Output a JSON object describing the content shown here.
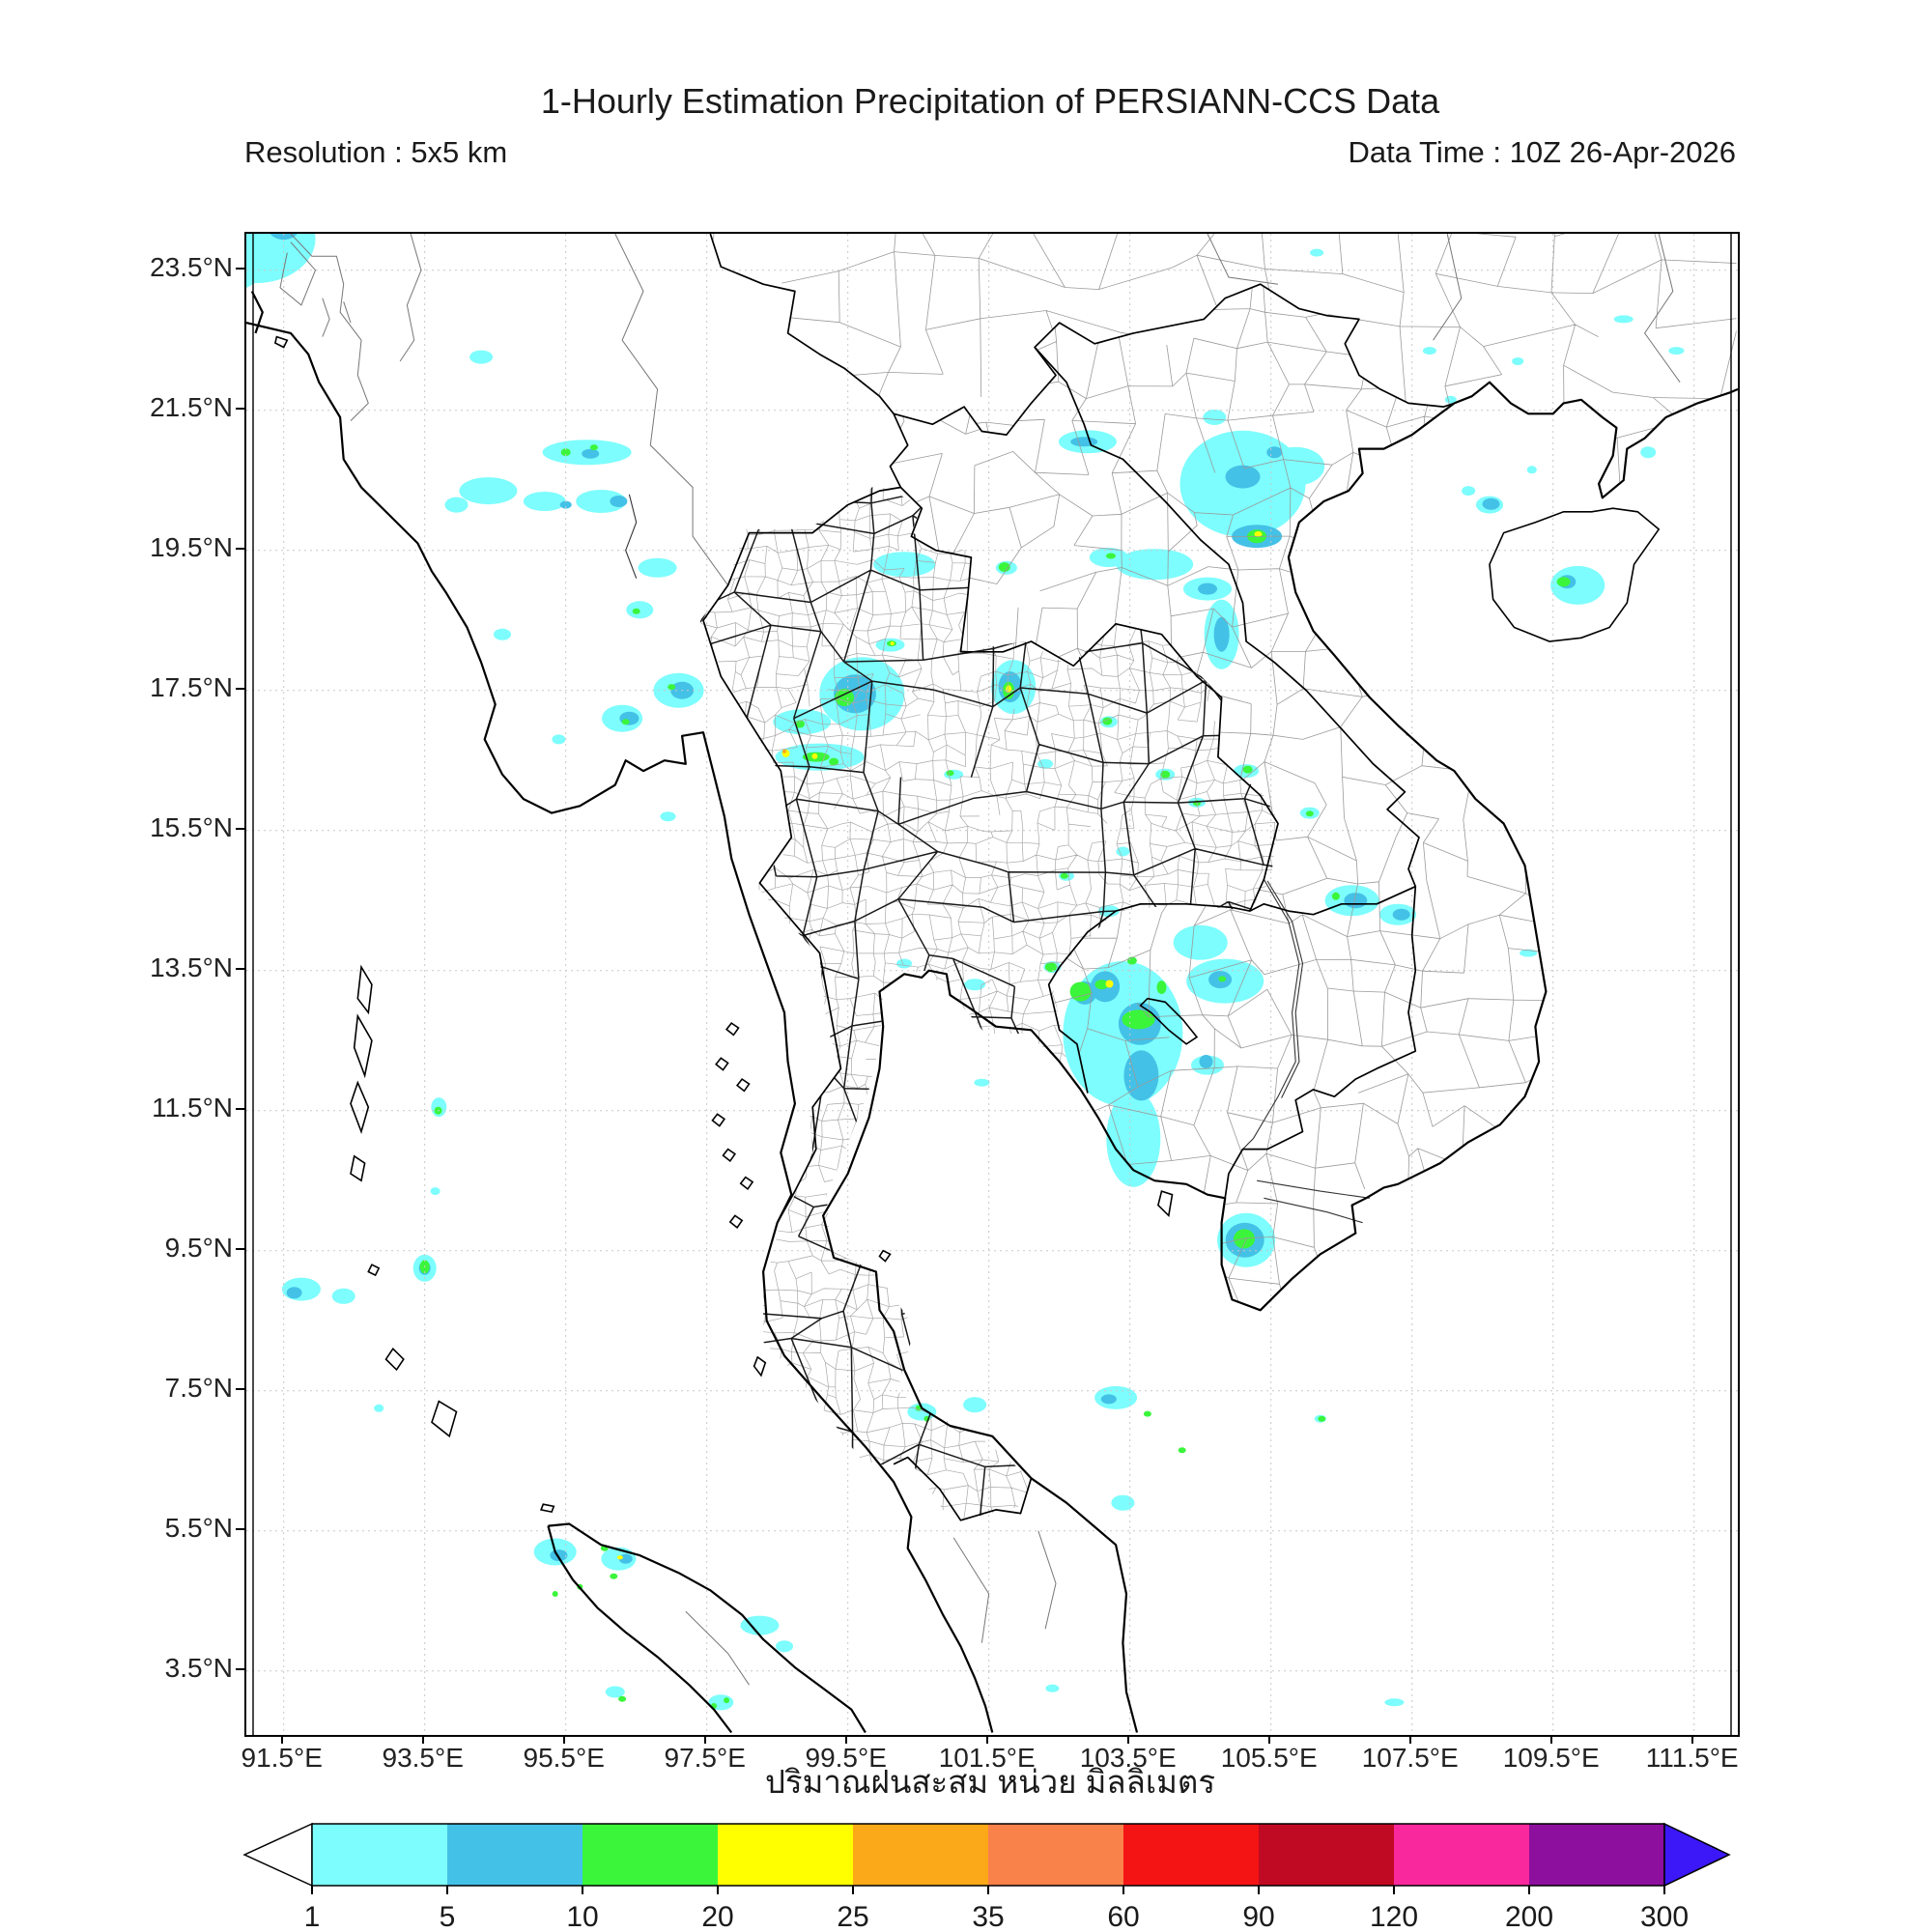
{
  "header": {
    "title": "1-Hourly Estimation Precipitation of PERSIANN-CCS Data",
    "resolution": "Resolution : 5x5 km",
    "data_time": "Data Time : 10Z 26-Apr-2026"
  },
  "caption": "ปริมาณฝนสะสม หน่วย มิลลิเมตร",
  "map": {
    "extent": {
      "lon_min": 90.97,
      "lon_max": 112.12,
      "lat_min": 2.6,
      "lat_max": 24.02
    },
    "lon_ticks": [
      {
        "label": "91.5°E",
        "lon": 91.5
      },
      {
        "label": "93.5°E",
        "lon": 93.5
      },
      {
        "label": "95.5°E",
        "lon": 95.5
      },
      {
        "label": "97.5°E",
        "lon": 97.5
      },
      {
        "label": "99.5°E",
        "lon": 99.5
      },
      {
        "label": "101.5°E",
        "lon": 101.5
      },
      {
        "label": "103.5°E",
        "lon": 103.5
      },
      {
        "label": "105.5°E",
        "lon": 105.5
      },
      {
        "label": "107.5°E",
        "lon": 107.5
      },
      {
        "label": "109.5°E",
        "lon": 109.5
      },
      {
        "label": "111.5°E",
        "lon": 111.5
      }
    ],
    "lat_ticks": [
      {
        "label": "23.5°N",
        "lat": 23.5
      },
      {
        "label": "21.5°N",
        "lat": 21.5
      },
      {
        "label": "19.5°N",
        "lat": 19.5
      },
      {
        "label": "17.5°N",
        "lat": 17.5
      },
      {
        "label": "15.5°N",
        "lat": 15.5
      },
      {
        "label": "13.5°N",
        "lat": 13.5
      },
      {
        "label": "11.5°N",
        "lat": 11.5
      },
      {
        "label": "9.5°N",
        "lat": 9.5
      },
      {
        "label": "7.5°N",
        "lat": 7.5
      },
      {
        "label": "5.5°N",
        "lat": 5.5
      },
      {
        "label": "3.5°N",
        "lat": 3.5
      }
    ],
    "grid_color": "#c8c8c8"
  },
  "colorbar": {
    "tick_labels": [
      "1",
      "5",
      "10",
      "20",
      "25",
      "35",
      "60",
      "90",
      "120",
      "200",
      "300"
    ],
    "segments": [
      {
        "range": "1-5",
        "color": "#7dfdfd"
      },
      {
        "range": "5-10",
        "color": "#44c1e6"
      },
      {
        "range": "10-20",
        "color": "#3bf53b"
      },
      {
        "range": "20-25",
        "color": "#ffff00"
      },
      {
        "range": "25-35",
        "color": "#fba819"
      },
      {
        "range": "35-60",
        "color": "#f9814a"
      },
      {
        "range": "60-90",
        "color": "#f41414"
      },
      {
        "range": "90-120",
        "color": "#c00a23"
      },
      {
        "range": "120-200",
        "color": "#f9289d"
      },
      {
        "range": "200-300",
        "color": "#8d0f9d"
      }
    ],
    "underflow_color": "#ffffff",
    "overflow_color": "#3c17f8"
  },
  "chart_data": {
    "type": "precipitation-map",
    "units": "mm",
    "cell_format": "[lon, lat, rx_px, ry_px, level]",
    "levels": {
      "1": "#7dfdfd",
      "2": "#44c1e6",
      "3": "#3bf53b",
      "4": "#ffff00",
      "5": "#fba819"
    },
    "cells": [
      [
        91.1,
        23.95,
        62,
        46,
        1
      ],
      [
        90.8,
        23.6,
        30,
        28,
        1
      ],
      [
        94.3,
        22.26,
        12,
        7,
        1
      ],
      [
        95.8,
        20.9,
        46,
        13,
        1
      ],
      [
        94.4,
        20.35,
        30,
        14,
        1
      ],
      [
        95.2,
        20.2,
        22,
        10,
        1
      ],
      [
        96.0,
        20.2,
        26,
        12,
        1
      ],
      [
        93.95,
        20.15,
        12,
        8,
        1
      ],
      [
        96.8,
        19.25,
        20,
        10,
        1
      ],
      [
        96.55,
        18.65,
        14,
        9,
        1
      ],
      [
        94.6,
        18.3,
        9,
        6,
        1
      ],
      [
        100.3,
        19.3,
        32,
        13,
        1
      ],
      [
        101.75,
        19.25,
        11,
        7,
        1
      ],
      [
        102.9,
        21.05,
        30,
        12,
        1
      ],
      [
        103.2,
        19.4,
        20,
        10,
        1
      ],
      [
        103.85,
        19.3,
        40,
        16,
        1
      ],
      [
        105.1,
        20.45,
        65,
        55,
        1
      ],
      [
        105.85,
        20.7,
        30,
        20,
        1
      ],
      [
        104.7,
        21.4,
        12,
        8,
        1
      ],
      [
        104.6,
        18.95,
        25,
        12,
        1
      ],
      [
        104.8,
        18.3,
        18,
        36,
        1
      ],
      [
        99.7,
        17.45,
        44,
        38,
        1
      ],
      [
        98.85,
        17.05,
        30,
        13,
        1
      ],
      [
        97.1,
        17.5,
        26,
        18,
        1
      ],
      [
        96.3,
        17.1,
        21,
        14,
        1
      ],
      [
        95.4,
        16.8,
        7,
        5,
        1
      ],
      [
        96.95,
        15.7,
        8,
        5,
        1
      ],
      [
        99.1,
        16.55,
        46,
        14,
        1
      ],
      [
        100.1,
        18.15,
        15,
        7,
        1
      ],
      [
        101.85,
        17.55,
        23,
        28,
        1
      ],
      [
        103.2,
        17.05,
        9,
        6,
        1
      ],
      [
        102.3,
        16.45,
        8,
        5,
        1
      ],
      [
        101.0,
        16.3,
        10,
        5,
        1
      ],
      [
        104.0,
        16.3,
        10,
        6,
        1
      ],
      [
        104.45,
        15.9,
        9,
        5,
        1
      ],
      [
        103.4,
        15.2,
        7,
        5,
        1
      ],
      [
        102.6,
        14.85,
        8,
        5,
        1
      ],
      [
        103.2,
        14.35,
        11,
        6,
        1
      ],
      [
        105.15,
        16.35,
        13,
        7,
        1
      ],
      [
        106.05,
        15.75,
        10,
        6,
        1
      ],
      [
        106.65,
        14.5,
        28,
        16,
        1
      ],
      [
        107.3,
        14.3,
        19,
        11,
        1
      ],
      [
        109.15,
        13.75,
        9,
        4,
        1
      ],
      [
        103.4,
        12.6,
        62,
        75,
        1
      ],
      [
        104.5,
        13.9,
        28,
        18,
        1
      ],
      [
        104.85,
        13.35,
        40,
        23,
        1
      ],
      [
        104.6,
        12.15,
        17,
        10,
        1
      ],
      [
        103.55,
        11.1,
        28,
        50,
        1
      ],
      [
        102.4,
        13.55,
        9,
        6,
        1
      ],
      [
        101.3,
        13.3,
        11,
        6,
        1
      ],
      [
        100.3,
        13.6,
        8,
        5,
        1
      ],
      [
        101.4,
        11.9,
        8,
        4,
        1
      ],
      [
        93.7,
        11.55,
        8,
        10,
        1
      ],
      [
        93.65,
        10.35,
        5,
        4,
        1
      ],
      [
        93.5,
        9.25,
        12,
        14,
        1
      ],
      [
        91.75,
        8.95,
        20,
        12,
        1
      ],
      [
        92.35,
        8.85,
        12,
        8,
        1
      ],
      [
        92.85,
        7.25,
        5,
        4,
        1
      ],
      [
        105.15,
        9.65,
        30,
        28,
        1
      ],
      [
        100.55,
        7.2,
        15,
        9,
        1
      ],
      [
        101.3,
        7.3,
        12,
        8,
        1
      ],
      [
        103.3,
        7.4,
        22,
        12,
        1
      ],
      [
        103.4,
        5.9,
        12,
        8,
        1
      ],
      [
        106.2,
        7.1,
        6,
        4,
        1
      ],
      [
        95.35,
        5.2,
        22,
        14,
        1
      ],
      [
        96.25,
        5.1,
        18,
        12,
        1
      ],
      [
        98.25,
        4.15,
        20,
        10,
        1
      ],
      [
        98.6,
        3.85,
        9,
        6,
        1
      ],
      [
        97.7,
        3.05,
        13,
        8,
        1
      ],
      [
        96.2,
        3.2,
        10,
        6,
        1
      ],
      [
        102.4,
        3.25,
        7,
        4,
        1
      ],
      [
        107.25,
        3.05,
        10,
        4,
        1
      ],
      [
        109.85,
        19.0,
        28,
        20,
        1
      ],
      [
        110.85,
        20.9,
        8,
        6,
        1
      ],
      [
        108.6,
        20.15,
        14,
        9,
        1
      ],
      [
        108.3,
        20.35,
        7,
        5,
        1
      ],
      [
        109.2,
        20.65,
        5,
        4,
        1
      ],
      [
        107.75,
        22.35,
        7,
        4,
        1
      ],
      [
        109.0,
        22.2,
        6,
        4,
        1
      ],
      [
        108.05,
        21.65,
        6,
        4,
        1
      ],
      [
        110.5,
        22.8,
        10,
        4,
        1
      ],
      [
        111.25,
        22.35,
        8,
        4,
        1
      ],
      [
        106.15,
        23.75,
        7,
        4,
        1
      ],
      [
        91.5,
        24.1,
        16,
        12,
        2
      ],
      [
        90.75,
        23.7,
        12,
        10,
        2
      ],
      [
        95.85,
        20.88,
        9,
        5,
        2
      ],
      [
        96.25,
        20.2,
        9,
        6,
        2
      ],
      [
        95.5,
        20.15,
        6,
        4,
        2
      ],
      [
        102.85,
        21.05,
        14,
        5,
        2
      ],
      [
        105.1,
        20.55,
        18,
        12,
        2
      ],
      [
        105.3,
        19.7,
        26,
        12,
        2
      ],
      [
        105.55,
        20.9,
        8,
        6,
        2
      ],
      [
        104.6,
        18.95,
        10,
        6,
        2
      ],
      [
        104.8,
        18.3,
        8,
        18,
        2
      ],
      [
        99.6,
        17.45,
        22,
        20,
        2
      ],
      [
        97.15,
        17.5,
        12,
        9,
        2
      ],
      [
        96.4,
        17.1,
        10,
        7,
        2
      ],
      [
        101.8,
        17.55,
        12,
        16,
        2
      ],
      [
        106.7,
        14.5,
        12,
        8,
        2
      ],
      [
        107.35,
        14.3,
        9,
        6,
        2
      ],
      [
        102.86,
        13.18,
        12,
        12,
        2
      ],
      [
        103.15,
        13.27,
        15,
        16,
        2
      ],
      [
        103.64,
        12.74,
        22,
        22,
        2
      ],
      [
        103.66,
        12.0,
        18,
        26,
        2
      ],
      [
        104.78,
        13.37,
        12,
        9,
        2
      ],
      [
        104.58,
        12.2,
        7,
        7,
        2
      ],
      [
        105.13,
        9.65,
        20,
        18,
        2
      ],
      [
        91.65,
        8.9,
        8,
        6,
        2
      ],
      [
        93.5,
        9.25,
        6,
        7,
        2
      ],
      [
        95.4,
        5.15,
        9,
        6,
        2
      ],
      [
        96.35,
        5.1,
        7,
        5,
        2
      ],
      [
        109.7,
        19.05,
        9,
        7,
        2
      ],
      [
        108.62,
        20.16,
        9,
        6,
        2
      ],
      [
        103.2,
        7.38,
        8,
        5,
        2
      ],
      [
        95.5,
        20.9,
        5,
        4,
        3
      ],
      [
        95.9,
        20.97,
        4,
        3,
        3
      ],
      [
        96.5,
        18.63,
        4,
        3,
        3
      ],
      [
        101.72,
        19.26,
        6,
        5,
        3
      ],
      [
        103.23,
        19.42,
        5,
        3,
        3
      ],
      [
        105.3,
        19.7,
        10,
        7,
        3
      ],
      [
        99.45,
        17.4,
        10,
        9,
        3
      ],
      [
        98.82,
        17.02,
        5,
        4,
        3
      ],
      [
        96.35,
        17.05,
        4,
        3,
        3
      ],
      [
        97.0,
        17.55,
        4,
        3,
        3
      ],
      [
        99.05,
        16.55,
        14,
        5,
        3
      ],
      [
        99.3,
        16.48,
        5,
        4,
        3
      ],
      [
        100.12,
        18.17,
        5,
        3,
        3
      ],
      [
        101.78,
        17.5,
        6,
        9,
        3
      ],
      [
        103.18,
        17.06,
        5,
        4,
        3
      ],
      [
        104.0,
        16.3,
        5,
        4,
        3
      ],
      [
        104.45,
        15.89,
        4,
        3,
        3
      ],
      [
        102.57,
        14.85,
        4,
        3,
        3
      ],
      [
        105.17,
        16.37,
        5,
        4,
        3
      ],
      [
        106.05,
        15.74,
        4,
        3,
        3
      ],
      [
        106.42,
        14.56,
        4,
        4,
        3
      ],
      [
        102.38,
        13.55,
        6,
        5,
        3
      ],
      [
        102.8,
        13.2,
        11,
        10,
        3
      ],
      [
        103.1,
        13.3,
        7,
        5,
        3
      ],
      [
        103.62,
        12.8,
        17,
        10,
        3
      ],
      [
        103.95,
        13.26,
        5,
        7,
        3
      ],
      [
        103.53,
        13.64,
        5,
        4,
        3
      ],
      [
        104.81,
        13.38,
        4,
        3,
        3
      ],
      [
        105.12,
        9.67,
        11,
        10,
        3
      ],
      [
        93.69,
        11.5,
        4,
        4,
        3
      ],
      [
        93.5,
        9.27,
        5,
        7,
        3
      ],
      [
        100.5,
        7.25,
        3,
        3,
        3
      ],
      [
        100.62,
        7.1,
        3,
        3,
        3
      ],
      [
        103.75,
        7.17,
        4,
        3,
        3
      ],
      [
        104.24,
        6.65,
        4,
        3,
        3
      ],
      [
        106.22,
        7.1,
        4,
        3,
        3
      ],
      [
        95.7,
        4.7,
        3,
        3,
        3
      ],
      [
        95.35,
        4.6,
        3,
        3,
        3
      ],
      [
        96.05,
        5.25,
        4,
        3,
        3
      ],
      [
        96.18,
        4.85,
        4,
        3,
        3
      ],
      [
        97.6,
        3.0,
        3,
        3,
        3
      ],
      [
        97.78,
        3.08,
        3,
        3,
        3
      ],
      [
        109.65,
        19.05,
        7,
        5,
        3
      ],
      [
        100.95,
        16.32,
        4,
        3,
        3
      ],
      [
        96.3,
        3.1,
        4,
        3,
        3
      ],
      [
        103.21,
        13.31,
        4,
        4,
        4
      ],
      [
        105.32,
        19.73,
        4,
        3,
        4
      ],
      [
        99.03,
        16.56,
        3,
        3,
        4
      ],
      [
        101.78,
        17.52,
        3,
        4,
        4
      ],
      [
        100.13,
        18.17,
        2,
        2,
        4
      ],
      [
        96.27,
        5.12,
        3,
        2,
        4
      ],
      [
        98.62,
        16.6,
        4,
        4,
        4
      ],
      [
        98.6,
        16.63,
        2,
        2,
        5
      ]
    ]
  }
}
